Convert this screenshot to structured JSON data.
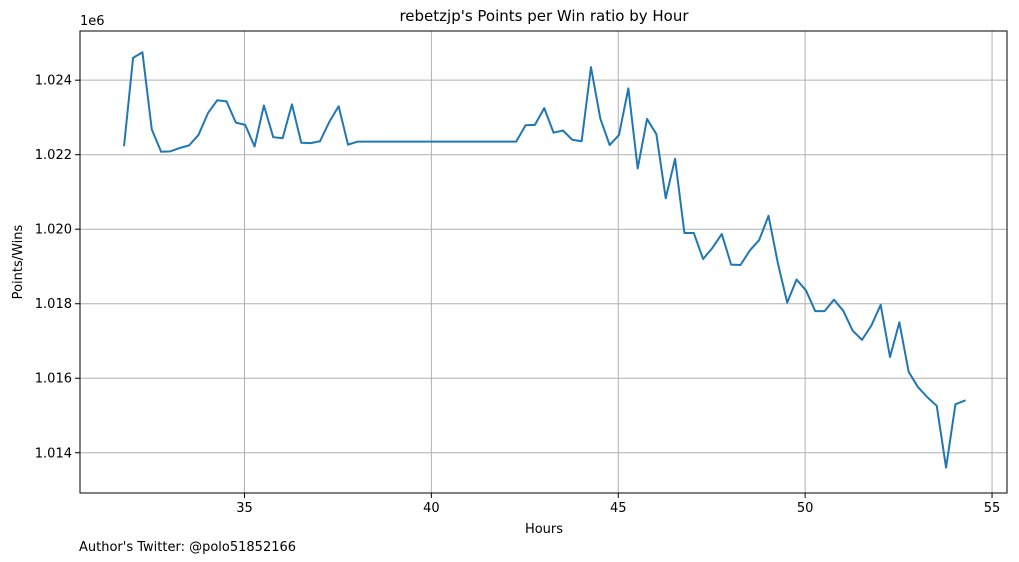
{
  "chart_data": {
    "type": "line",
    "title": "rebetzjp's Points per Win ratio by Hour",
    "xlabel": "Hours",
    "ylabel": "Points/Wins",
    "y_offset_label": "1e6",
    "xlim": [
      30.6,
      55.4
    ],
    "ylim": [
      1.01292,
      1.02532
    ],
    "x_ticks": [
      35,
      40,
      45,
      50,
      55
    ],
    "x_tick_labels": [
      "35",
      "40",
      "45",
      "50",
      "55"
    ],
    "y_ticks": [
      1.014,
      1.016,
      1.018,
      1.02,
      1.022,
      1.024
    ],
    "y_tick_labels": [
      "1.014",
      "1.016",
      "1.018",
      "1.020",
      "1.022",
      "1.024"
    ],
    "grid": true,
    "line_color": "#1f77b4",
    "grid_color": "#b0b0b0",
    "series": [
      {
        "x": [
          31.78,
          32.02,
          32.27,
          32.52,
          32.77,
          33.02,
          33.27,
          33.52,
          33.77,
          34.02,
          34.27,
          34.52,
          34.77,
          35.02,
          35.27,
          35.52,
          35.77,
          36.02,
          36.27,
          36.52,
          36.77,
          37.02,
          37.27,
          37.52,
          37.77,
          38.02,
          38.27,
          38.52,
          38.77,
          39.02,
          39.27,
          39.52,
          39.77,
          40.02,
          40.27,
          40.52,
          40.77,
          41.02,
          41.27,
          41.52,
          41.77,
          42.02,
          42.27,
          42.52,
          42.77,
          43.02,
          43.27,
          43.52,
          43.77,
          44.02,
          44.27,
          44.52,
          44.77,
          45.02,
          45.27,
          45.52,
          45.77,
          46.02,
          46.27,
          46.52,
          46.77,
          47.02,
          47.27,
          47.52,
          47.77,
          48.02,
          48.27,
          48.52,
          48.77,
          49.02,
          49.27,
          49.52,
          49.77,
          50.02,
          50.27,
          50.52,
          50.77,
          51.02,
          51.27,
          51.52,
          51.77,
          52.02,
          52.27,
          52.52,
          52.77,
          53.02,
          53.27,
          53.52,
          53.77,
          54.02,
          54.27
        ],
        "y": [
          1.02225,
          1.0246,
          1.02475,
          1.02268,
          1.02208,
          1.02209,
          1.02218,
          1.02225,
          1.02253,
          1.02311,
          1.02346,
          1.02343,
          1.02286,
          1.0228,
          1.02222,
          1.02332,
          1.02247,
          1.02244,
          1.02335,
          1.02232,
          1.02231,
          1.02236,
          1.02288,
          1.0233,
          1.02227,
          1.02235,
          1.02235,
          1.02235,
          1.02235,
          1.02235,
          1.02235,
          1.02235,
          1.02235,
          1.02235,
          1.02235,
          1.02235,
          1.02235,
          1.02235,
          1.02235,
          1.02235,
          1.02235,
          1.02235,
          1.02235,
          1.02279,
          1.0228,
          1.02325,
          1.02259,
          1.02265,
          1.0224,
          1.02236,
          1.02435,
          1.02297,
          1.02226,
          1.02253,
          1.02378,
          1.02163,
          1.02296,
          1.02255,
          1.02083,
          1.02189,
          1.0199,
          1.0199,
          1.0192,
          1.0195,
          1.01987,
          1.01905,
          1.01904,
          1.01943,
          1.01971,
          1.02036,
          1.01909,
          1.01803,
          1.01865,
          1.01836,
          1.0178,
          1.0178,
          1.01811,
          1.01781,
          1.01728,
          1.01703,
          1.01741,
          1.01797,
          1.01657,
          1.0175,
          1.01617,
          1.01576,
          1.01549,
          1.01526,
          1.0136,
          1.0153,
          1.0154
        ]
      }
    ]
  },
  "footer": {
    "text": "Author's Twitter: @polo51852166"
  }
}
